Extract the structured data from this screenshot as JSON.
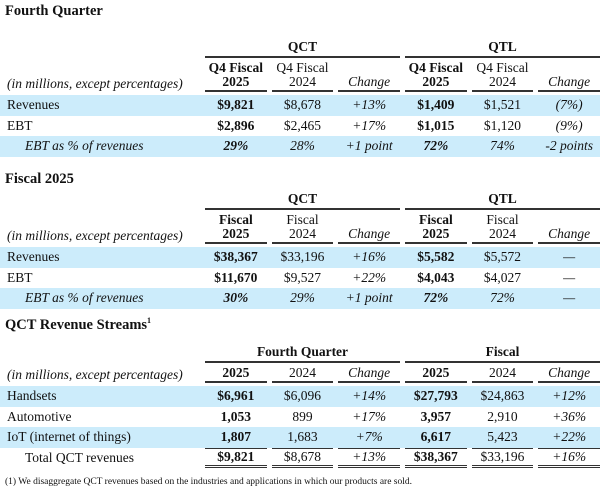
{
  "sections": [
    {
      "title": "Fourth Quarter",
      "groups": [
        "QCT",
        "QTL"
      ],
      "label_header": "(in millions, except percentages)",
      "subheaders": [
        [
          "Q4 Fiscal",
          "2025"
        ],
        [
          "Q4 Fiscal",
          "2024"
        ],
        [
          "",
          "Change"
        ],
        [
          "Q4 Fiscal",
          "2025"
        ],
        [
          "Q4 Fiscal",
          "2024"
        ],
        [
          "",
          "Change"
        ]
      ],
      "rows": [
        {
          "label": "Revenues",
          "values": [
            "$9,821",
            "$8,678",
            "+13%",
            "$1,409",
            "$1,521",
            "(7%)"
          ]
        },
        {
          "label": "EBT",
          "values": [
            "$2,896",
            "$2,465",
            "+17%",
            "$1,015",
            "$1,120",
            "(9%)"
          ]
        },
        {
          "label": "EBT as % of revenues",
          "values": [
            "29%",
            "28%",
            "+1 point",
            "72%",
            "74%",
            "-2 points"
          ]
        }
      ]
    },
    {
      "title": "Fiscal 2025",
      "groups": [
        "QCT",
        "QTL"
      ],
      "label_header": "(in millions, except percentages)",
      "subheaders": [
        [
          "Fiscal",
          "2025"
        ],
        [
          "Fiscal",
          "2024"
        ],
        [
          "",
          "Change"
        ],
        [
          "Fiscal",
          "2025"
        ],
        [
          "Fiscal",
          "2024"
        ],
        [
          "",
          "Change"
        ]
      ],
      "rows": [
        {
          "label": "Revenues",
          "values": [
            "$38,367",
            "$33,196",
            "+16%",
            "$5,582",
            "$5,572",
            "—"
          ]
        },
        {
          "label": "EBT",
          "values": [
            "$11,670",
            "$9,527",
            "+22%",
            "$4,043",
            "$4,027",
            "—"
          ]
        },
        {
          "label": "EBT as % of revenues",
          "values": [
            "30%",
            "29%",
            "+1 point",
            "72%",
            "72%",
            "—"
          ]
        }
      ]
    },
    {
      "title": "QCT Revenue Streams",
      "title_sup": "1",
      "groups": [
        "Fourth Quarter",
        "Fiscal"
      ],
      "label_header": "(in millions, except percentages)",
      "subheaders": [
        [
          "",
          "2025"
        ],
        [
          "",
          "2024"
        ],
        [
          "",
          "Change"
        ],
        [
          "",
          "2025"
        ],
        [
          "",
          "2024"
        ],
        [
          "",
          "Change"
        ]
      ],
      "rows": [
        {
          "label": "Handsets",
          "values": [
            "$6,961",
            "$6,096",
            "+14%",
            "$27,793",
            "$24,863",
            "+12%"
          ]
        },
        {
          "label": "Automotive",
          "values": [
            "1,053",
            "899",
            "+17%",
            "3,957",
            "2,910",
            "+36%"
          ]
        },
        {
          "label": "IoT (internet of things)",
          "values": [
            "1,807",
            "1,683",
            "+7%",
            "6,617",
            "5,423",
            "+22%"
          ]
        },
        {
          "label": "Total QCT revenues",
          "values": [
            "$9,821",
            "$8,678",
            "+13%",
            "$38,367",
            "$33,196",
            "+16%"
          ]
        }
      ]
    }
  ],
  "footnote": "(1) We disaggregate QCT revenues based on the industries and applications in which our products are sold."
}
